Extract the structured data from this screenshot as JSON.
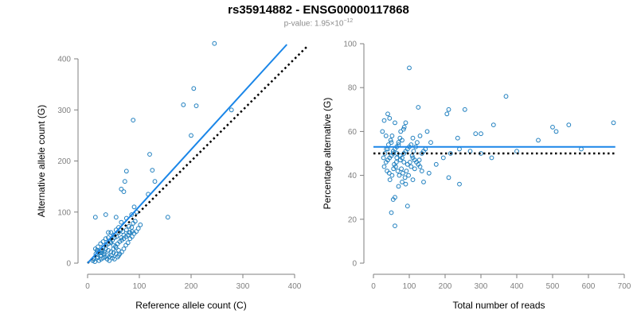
{
  "title": "rs35914882 - ENSG00000117868",
  "subtitle": {
    "prefix": "p-value: 1.95×10",
    "exponent": "−12"
  },
  "colors": {
    "points": "#1f7fbf",
    "fit_line": "#1a86e8",
    "reference_line": "#000000",
    "axes": "#7f7f7f"
  },
  "chart_data": [
    {
      "type": "scatter",
      "xlabel": "Reference allele count (C)",
      "ylabel": "Alternative allele count (G)",
      "xlim": [
        0,
        400
      ],
      "ylim": [
        0,
        400
      ],
      "xticks": [
        0,
        100,
        200,
        300,
        400
      ],
      "yticks": [
        0,
        100,
        200,
        300,
        400
      ],
      "fit_line": {
        "x": [
          0,
          385
        ],
        "y": [
          0,
          428
        ]
      },
      "reference_line": {
        "x": [
          0,
          425
        ],
        "y": [
          0,
          425
        ]
      },
      "points": [
        [
          245,
          430
        ],
        [
          205,
          342
        ],
        [
          210,
          308
        ],
        [
          185,
          310
        ],
        [
          278,
          300
        ],
        [
          88,
          280
        ],
        [
          200,
          250
        ],
        [
          120,
          213
        ],
        [
          125,
          182
        ],
        [
          75,
          180
        ],
        [
          130,
          160
        ],
        [
          117,
          135
        ],
        [
          72,
          160
        ],
        [
          65,
          145
        ],
        [
          70,
          140
        ],
        [
          55,
          90
        ],
        [
          75,
          88
        ],
        [
          85,
          95
        ],
        [
          90,
          110
        ],
        [
          95,
          100
        ],
        [
          15,
          90
        ],
        [
          155,
          90
        ],
        [
          65,
          80
        ],
        [
          80,
          72
        ],
        [
          60,
          70
        ],
        [
          55,
          65
        ],
        [
          45,
          60
        ],
        [
          50,
          55
        ],
        [
          40,
          50
        ],
        [
          35,
          48
        ],
        [
          30,
          42
        ],
        [
          25,
          38
        ],
        [
          20,
          32
        ],
        [
          15,
          28
        ],
        [
          18,
          25
        ],
        [
          22,
          22
        ],
        [
          28,
          20
        ],
        [
          32,
          18
        ],
        [
          38,
          15
        ],
        [
          42,
          12
        ],
        [
          48,
          10
        ],
        [
          52,
          8
        ],
        [
          58,
          12
        ],
        [
          62,
          18
        ],
        [
          66,
          22
        ],
        [
          70,
          28
        ],
        [
          74,
          35
        ],
        [
          78,
          40
        ],
        [
          82,
          48
        ],
        [
          86,
          52
        ],
        [
          90,
          58
        ],
        [
          94,
          62
        ],
        [
          98,
          68
        ],
        [
          102,
          75
        ],
        [
          35,
          95
        ],
        [
          40,
          60
        ],
        [
          45,
          40
        ],
        [
          50,
          35
        ],
        [
          55,
          30
        ],
        [
          60,
          25
        ],
        [
          65,
          50
        ],
        [
          70,
          55
        ],
        [
          75,
          65
        ],
        [
          80,
          60
        ],
        [
          85,
          70
        ],
        [
          88,
          78
        ],
        [
          92,
          82
        ],
        [
          30,
          30
        ],
        [
          35,
          28
        ],
        [
          40,
          25
        ],
        [
          45,
          22
        ],
        [
          50,
          20
        ],
        [
          55,
          18
        ],
        [
          60,
          15
        ],
        [
          25,
          15
        ],
        [
          20,
          12
        ],
        [
          18,
          10
        ],
        [
          12,
          8
        ],
        [
          10,
          5
        ],
        [
          14,
          3
        ],
        [
          22,
          5
        ],
        [
          26,
          8
        ],
        [
          30,
          10
        ],
        [
          34,
          12
        ],
        [
          38,
          8
        ],
        [
          42,
          5
        ],
        [
          46,
          15
        ],
        [
          50,
          28
        ],
        [
          54,
          33
        ],
        [
          58,
          38
        ],
        [
          62,
          42
        ],
        [
          66,
          45
        ],
        [
          70,
          48
        ],
        [
          74,
          52
        ],
        [
          78,
          55
        ],
        [
          82,
          60
        ],
        [
          86,
          62
        ],
        [
          36,
          35
        ],
        [
          40,
          38
        ],
        [
          44,
          42
        ],
        [
          48,
          45
        ],
        [
          52,
          50
        ],
        [
          56,
          52
        ],
        [
          28,
          25
        ],
        [
          32,
          22
        ],
        [
          24,
          20
        ],
        [
          16,
          18
        ],
        [
          20,
          24
        ],
        [
          60,
          60
        ],
        [
          64,
          65
        ],
        [
          68,
          62
        ]
      ]
    },
    {
      "type": "scatter",
      "xlabel": "Total number of reads",
      "ylabel": "Percentage alternative (G)",
      "xlim": [
        0,
        700
      ],
      "ylim": [
        0,
        100
      ],
      "xticks": [
        0,
        100,
        200,
        300,
        400,
        500,
        600,
        700
      ],
      "yticks": [
        0,
        20,
        40,
        60,
        80,
        100
      ],
      "fit_line": {
        "x": [
          0,
          675
        ],
        "y": [
          53,
          53
        ]
      },
      "reference_line": {
        "x": [
          0,
          675
        ],
        "y": [
          50,
          50
        ]
      },
      "points": [
        [
          100,
          89
        ],
        [
          370,
          76
        ],
        [
          125,
          71
        ],
        [
          210,
          70
        ],
        [
          255,
          70
        ],
        [
          205,
          68
        ],
        [
          40,
          68
        ],
        [
          30,
          65
        ],
        [
          45,
          66
        ],
        [
          90,
          64
        ],
        [
          60,
          64
        ],
        [
          335,
          63
        ],
        [
          670,
          64
        ],
        [
          545,
          63
        ],
        [
          500,
          62
        ],
        [
          510,
          60
        ],
        [
          285,
          59
        ],
        [
          300,
          59
        ],
        [
          460,
          56
        ],
        [
          235,
          57
        ],
        [
          150,
          60
        ],
        [
          160,
          55
        ],
        [
          110,
          57
        ],
        [
          130,
          58
        ],
        [
          80,
          56
        ],
        [
          70,
          55
        ],
        [
          50,
          55
        ],
        [
          35,
          58
        ],
        [
          25,
          60
        ],
        [
          40,
          52
        ],
        [
          55,
          50
        ],
        [
          65,
          48
        ],
        [
          75,
          47
        ],
        [
          85,
          46
        ],
        [
          95,
          45
        ],
        [
          105,
          44
        ],
        [
          115,
          43
        ],
        [
          135,
          42
        ],
        [
          155,
          41
        ],
        [
          175,
          45
        ],
        [
          195,
          48
        ],
        [
          215,
          50
        ],
        [
          240,
          52
        ],
        [
          270,
          51
        ],
        [
          300,
          50
        ],
        [
          330,
          48
        ],
        [
          580,
          52
        ],
        [
          400,
          51
        ],
        [
          140,
          37
        ],
        [
          110,
          38
        ],
        [
          90,
          36
        ],
        [
          80,
          37
        ],
        [
          70,
          35
        ],
        [
          60,
          30
        ],
        [
          55,
          29
        ],
        [
          50,
          23
        ],
        [
          60,
          17
        ],
        [
          95,
          26
        ],
        [
          240,
          36
        ],
        [
          210,
          39
        ],
        [
          30,
          44
        ],
        [
          35,
          46
        ],
        [
          40,
          47
        ],
        [
          45,
          48
        ],
        [
          50,
          49
        ],
        [
          55,
          51
        ],
        [
          60,
          52
        ],
        [
          65,
          53
        ],
        [
          70,
          54
        ],
        [
          75,
          49
        ],
        [
          80,
          48
        ],
        [
          85,
          50
        ],
        [
          90,
          51
        ],
        [
          95,
          52
        ],
        [
          100,
          53
        ],
        [
          105,
          54
        ],
        [
          110,
          48
        ],
        [
          115,
          47
        ],
        [
          120,
          46
        ],
        [
          125,
          45
        ],
        [
          130,
          44
        ],
        [
          135,
          50
        ],
        [
          140,
          51
        ],
        [
          145,
          52
        ],
        [
          28,
          48
        ],
        [
          32,
          50
        ],
        [
          36,
          52
        ],
        [
          42,
          54
        ],
        [
          48,
          56
        ],
        [
          52,
          58
        ],
        [
          58,
          45
        ],
        [
          62,
          44
        ],
        [
          68,
          42
        ],
        [
          72,
          40
        ],
        [
          78,
          43
        ],
        [
          82,
          41
        ],
        [
          88,
          39
        ],
        [
          92,
          42
        ],
        [
          98,
          40
        ],
        [
          102,
          46
        ],
        [
          108,
          49
        ],
        [
          112,
          51
        ],
        [
          118,
          53
        ],
        [
          122,
          55
        ],
        [
          128,
          47
        ],
        [
          38,
          42
        ],
        [
          44,
          41
        ],
        [
          46,
          38
        ],
        [
          52,
          40
        ],
        [
          56,
          43
        ],
        [
          64,
          46
        ],
        [
          66,
          50
        ],
        [
          74,
          57
        ],
        [
          76,
          60
        ],
        [
          84,
          61
        ],
        [
          86,
          62
        ]
      ]
    }
  ]
}
